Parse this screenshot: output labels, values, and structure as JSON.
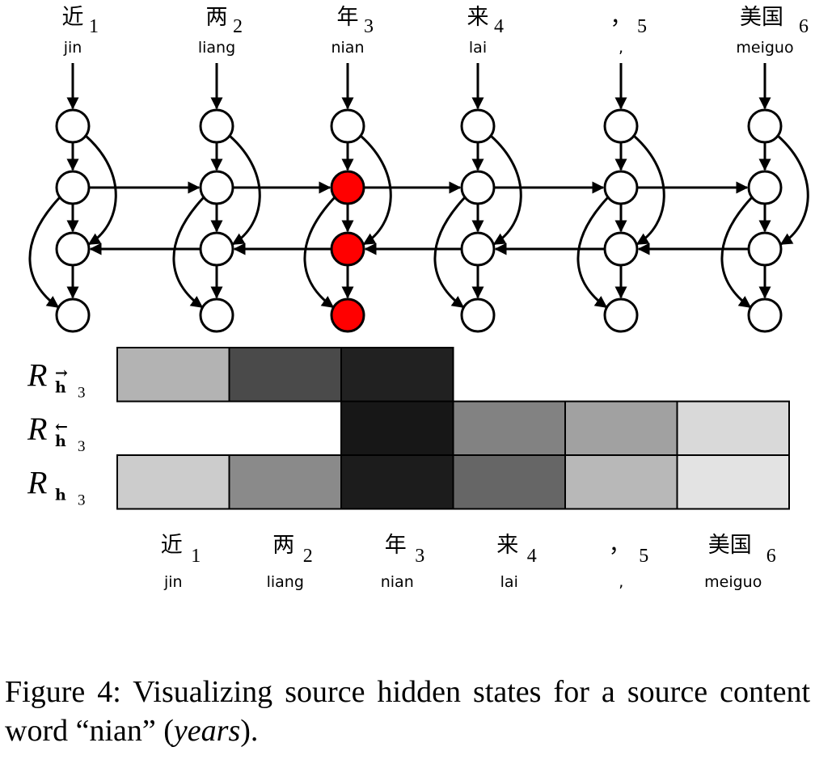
{
  "tokens": [
    {
      "char": "近",
      "index": "1",
      "pinyin": "jin"
    },
    {
      "char": "两",
      "index": "2",
      "pinyin": "liang"
    },
    {
      "char": "年",
      "index": "3",
      "pinyin": "nian"
    },
    {
      "char": "来",
      "index": "4",
      "pinyin": "lai"
    },
    {
      "char": "，",
      "index": "5",
      "pinyin": ","
    },
    {
      "char": "美国",
      "index": "6",
      "pinyin": "meiguo"
    }
  ],
  "network": {
    "layers": [
      "input",
      "forward",
      "backward",
      "output"
    ],
    "highlight_position": 3,
    "highlight_layers": [
      "forward",
      "backward",
      "output"
    ],
    "highlight_color": "#ff0000"
  },
  "heatmap": {
    "rows": [
      {
        "symbol": "R",
        "sub": "h",
        "arrow": "→",
        "num": "3",
        "cells": [
          0.7,
          0.29,
          0.13,
          null,
          null,
          null
        ]
      },
      {
        "symbol": "R",
        "sub": "h",
        "arrow": "←",
        "num": "3",
        "cells": [
          null,
          null,
          0.09,
          0.51,
          0.63,
          0.85
        ]
      },
      {
        "symbol": "R",
        "sub": "h",
        "arrow": "",
        "num": "3",
        "cells": [
          0.8,
          0.54,
          0.11,
          0.4,
          0.72,
          0.89
        ]
      }
    ],
    "scale_note": "cell values are gray levels (0 = black, 1 = white)"
  },
  "caption": {
    "prefix": "Figure 4:  Visualizing source hidden states for a source content word “nian” (",
    "italic": "years",
    "suffix": ")."
  }
}
